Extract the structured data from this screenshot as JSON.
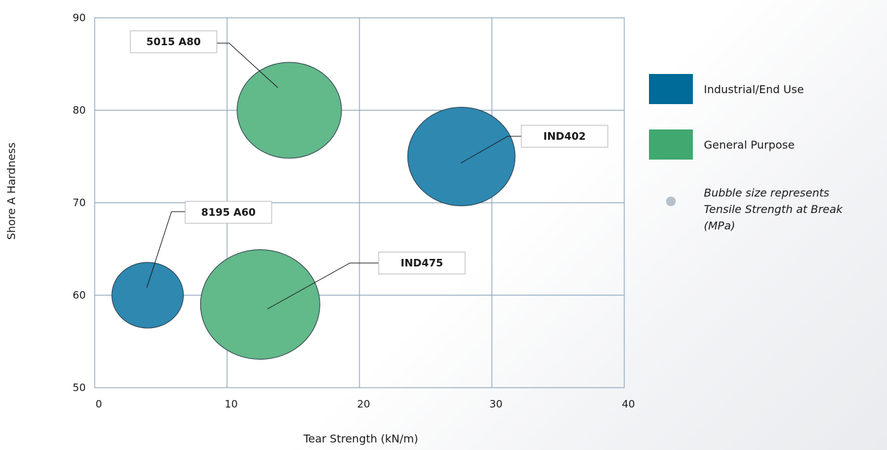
{
  "chart_data": {
    "type": "bubble",
    "xlabel": "Tear Strength (kN/m)",
    "ylabel": "Shore A Hardness",
    "xlim": [
      0,
      40
    ],
    "ylim": [
      50,
      90
    ],
    "xticks": [
      0,
      10,
      20,
      30,
      40
    ],
    "yticks": [
      50,
      60,
      70,
      80,
      90
    ],
    "grid": true,
    "series": [
      {
        "name": "Industrial/End Use",
        "color": "#2e88b0",
        "points": [
          {
            "label": "IND402",
            "x": 27.7,
            "y": 75,
            "size": 36
          },
          {
            "label": "8195 A60",
            "x": 4,
            "y": 60,
            "size": 24
          }
        ]
      },
      {
        "name": "General Purpose",
        "color": "#62b98a",
        "points": [
          {
            "label": "5015 A80",
            "x": 14.7,
            "y": 80,
            "size": 35
          },
          {
            "label": "IND475",
            "x": 12.5,
            "y": 59,
            "size": 40
          }
        ]
      }
    ]
  },
  "legend": {
    "items": [
      {
        "label": "Industrial/End Use",
        "color": "#006a98"
      },
      {
        "label": "General Purpose",
        "color": "#41a86f"
      }
    ],
    "note": "Bubble size represents Tensile Strength at Break (MPa)"
  }
}
